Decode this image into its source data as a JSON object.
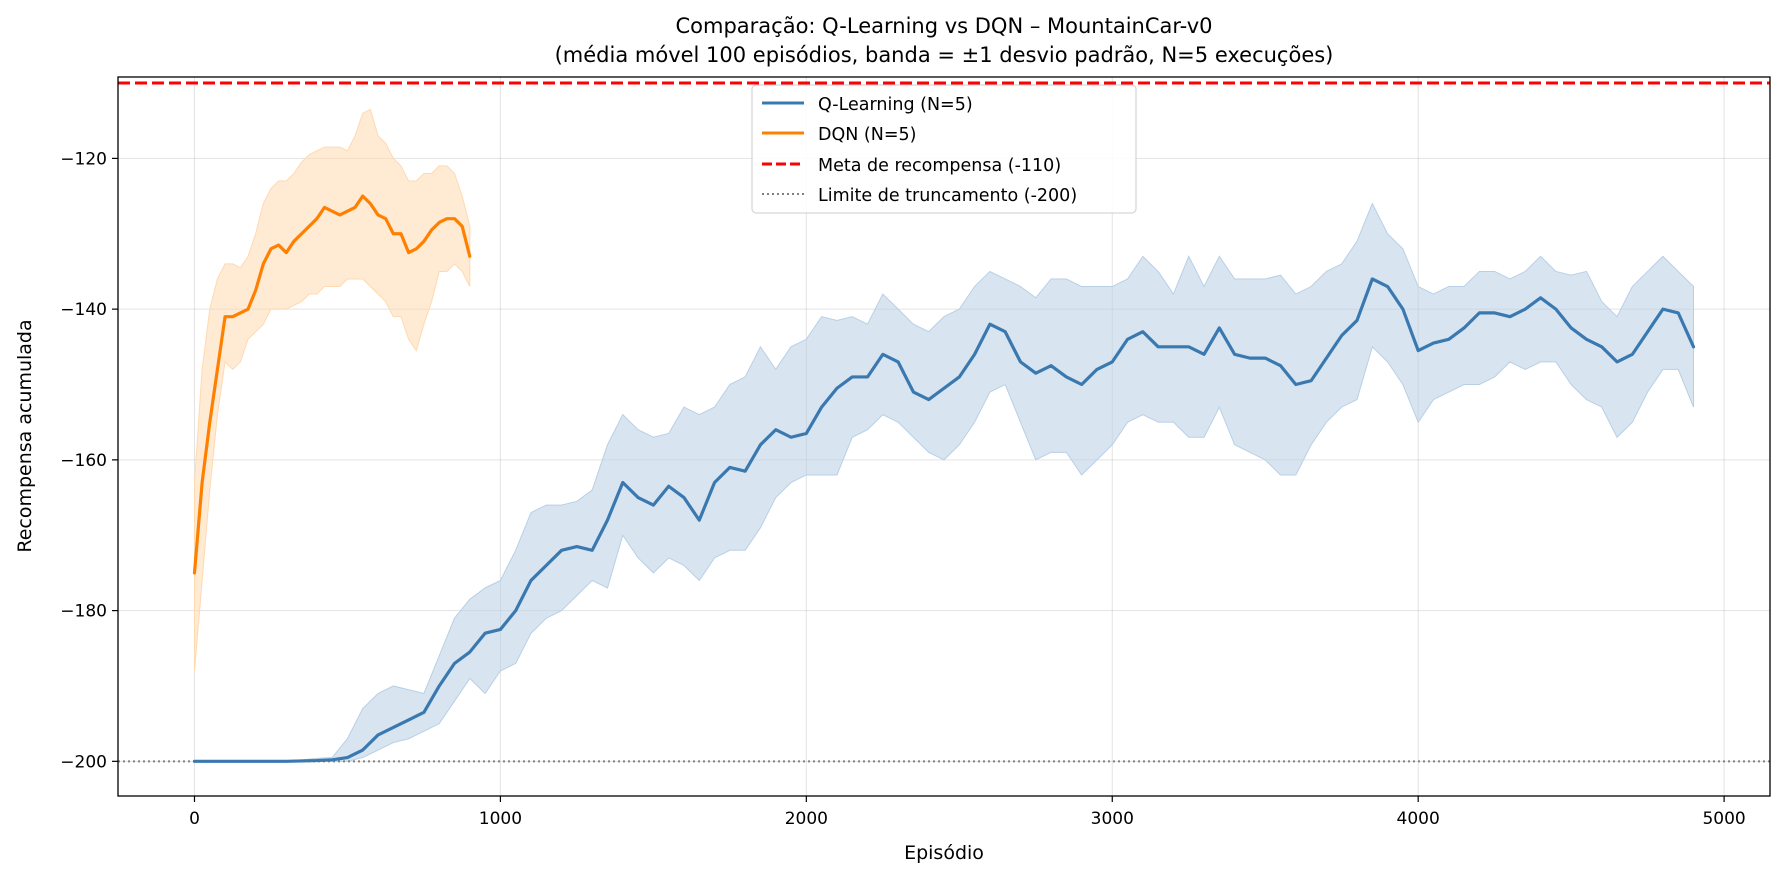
{
  "chart_data": {
    "type": "line",
    "title_line1": "Comparação: Q-Learning vs DQN – MountainCar-v0",
    "title_line2": "(média móvel 100 episódios, banda = ±1 desvio padrão, N=5 execuções)",
    "xlabel": "Episódio",
    "ylabel": "Recompensa acumulada",
    "xlim": [
      -250,
      5150
    ],
    "ylim": [
      -204.6,
      -109.2
    ],
    "xticks": [
      0,
      1000,
      2000,
      3000,
      4000,
      5000
    ],
    "xtick_labels": [
      "0",
      "1000",
      "2000",
      "3000",
      "4000",
      "5000"
    ],
    "yticks": [
      -200,
      -180,
      -160,
      -140,
      -120
    ],
    "ytick_labels": [
      "−200",
      "−180",
      "−160",
      "−140",
      "−120"
    ],
    "grid": true,
    "legend_position": "top-center",
    "legend": [
      {
        "label": "Q-Learning (N=5)",
        "style": "solid",
        "color": "#3a78b0"
      },
      {
        "label": "DQN (N=5)",
        "style": "solid",
        "color": "#ff8000"
      },
      {
        "label": "Meta de recompensa (-110)",
        "style": "dashed",
        "color": "#ff0000"
      },
      {
        "label": "Limite de truncamento (-200)",
        "style": "dotted",
        "color": "#808080"
      }
    ],
    "hlines": [
      {
        "name": "Meta de recompensa (-110)",
        "y": -110,
        "color": "#ff0000",
        "style": "dashed"
      },
      {
        "name": "Limite de truncamento (-200)",
        "y": -200,
        "color": "#808080",
        "style": "dotted"
      }
    ],
    "series": [
      {
        "name": "Q-Learning (N=5)",
        "color": "#3a78b0",
        "band_color": "#b8cfe5",
        "x": [
          0,
          100,
          200,
          300,
          400,
          450,
          500,
          550,
          600,
          650,
          700,
          750,
          800,
          850,
          900,
          950,
          1000,
          1050,
          1100,
          1150,
          1200,
          1250,
          1300,
          1350,
          1400,
          1450,
          1500,
          1550,
          1600,
          1650,
          1700,
          1750,
          1800,
          1850,
          1900,
          1950,
          2000,
          2050,
          2100,
          2150,
          2200,
          2250,
          2300,
          2350,
          2400,
          2450,
          2500,
          2550,
          2600,
          2650,
          2700,
          2750,
          2800,
          2850,
          2900,
          2950,
          3000,
          3050,
          3100,
          3150,
          3200,
          3250,
          3300,
          3350,
          3400,
          3450,
          3500,
          3550,
          3600,
          3650,
          3700,
          3750,
          3800,
          3850,
          3900,
          3950,
          4000,
          4050,
          4100,
          4150,
          4200,
          4250,
          4300,
          4350,
          4400,
          4450,
          4500,
          4550,
          4600,
          4650,
          4700,
          4750,
          4800,
          4850,
          4900
        ],
        "mean": [
          -200,
          -200,
          -200,
          -200,
          -199.9,
          -199.8,
          -199.5,
          -198.5,
          -196.5,
          -195.5,
          -194.5,
          -193.5,
          -190,
          -187,
          -185.5,
          -183,
          -182.5,
          -180,
          -176,
          -174,
          -172,
          -171.5,
          -172,
          -168,
          -163,
          -165,
          -166,
          -163.5,
          -165,
          -168,
          -163,
          -161,
          -161.5,
          -158,
          -156,
          -157,
          -156.5,
          -153,
          -150.5,
          -149,
          -149,
          -146,
          -147,
          -151,
          -152,
          -150.5,
          -149,
          -146,
          -142,
          -143,
          -147,
          -148.5,
          -147.5,
          -149,
          -150,
          -148,
          -147,
          -144,
          -143,
          -145,
          -145,
          -145,
          -146,
          -142.5,
          -146,
          -146.5,
          -146.5,
          -147.5,
          -150,
          -149.5,
          -146.5,
          -143.5,
          -141.5,
          -136,
          -137,
          -140,
          -145.5,
          -144.5,
          -144,
          -142.5,
          -140.5,
          -140.5,
          -141,
          -140,
          -138.5,
          -140,
          -142.5,
          -144,
          -145,
          -147,
          -146,
          -143,
          -140,
          -140.5,
          -145
        ],
        "upper": [
          -200,
          -200,
          -200,
          -200,
          -199.6,
          -199.5,
          -197,
          -193,
          -191,
          -190,
          -190.5,
          -191,
          -186,
          -181,
          -178.5,
          -177,
          -176,
          -172,
          -167,
          -166,
          -166,
          -165.5,
          -164,
          -158,
          -154,
          -156,
          -157,
          -156.5,
          -153,
          -154,
          -153,
          -150,
          -149,
          -145,
          -148,
          -145,
          -144,
          -141,
          -141.5,
          -141,
          -142,
          -138,
          -140,
          -142,
          -143,
          -141,
          -140,
          -137,
          -135,
          -136,
          -137,
          -138.5,
          -136,
          -136,
          -137,
          -137,
          -137,
          -136,
          -133,
          -135,
          -138,
          -133,
          -137,
          -133,
          -136,
          -136,
          -136,
          -135.5,
          -138,
          -137,
          -135,
          -134,
          -131,
          -126,
          -130,
          -132,
          -137,
          -138,
          -137,
          -137,
          -135,
          -135,
          -136,
          -135,
          -133,
          -135,
          -135.5,
          -135,
          -139,
          -141,
          -137,
          -135,
          -133,
          -135,
          -137
        ],
        "lower": [
          -200,
          -200,
          -200,
          -200,
          -200,
          -200,
          -200,
          -199.5,
          -198.5,
          -197.5,
          -197,
          -196,
          -195,
          -192,
          -189,
          -191,
          -188,
          -187,
          -183,
          -181,
          -180,
          -178,
          -176,
          -177,
          -170,
          -173,
          -175,
          -173,
          -174,
          -176,
          -173,
          -172,
          -172,
          -169,
          -165,
          -163,
          -162,
          -162,
          -162,
          -157,
          -156,
          -154,
          -155,
          -157,
          -159,
          -160,
          -158,
          -155,
          -151,
          -150,
          -155,
          -160,
          -159,
          -159,
          -162,
          -160,
          -158,
          -155,
          -154,
          -155,
          -155,
          -157,
          -157,
          -153,
          -158,
          -159,
          -160,
          -162,
          -162,
          -158,
          -155,
          -153,
          -152,
          -145,
          -147,
          -150,
          -155,
          -152,
          -151,
          -150,
          -150,
          -149,
          -147,
          -148,
          -147,
          -147,
          -150,
          -152,
          -153,
          -157,
          -155,
          -151,
          -148,
          -148,
          -153
        ]
      },
      {
        "name": "DQN (N=5)",
        "color": "#ff8000",
        "band_color": "#ffd9b0",
        "x": [
          0,
          25,
          50,
          75,
          100,
          125,
          150,
          175,
          200,
          225,
          250,
          275,
          300,
          325,
          350,
          375,
          400,
          425,
          450,
          475,
          500,
          525,
          550,
          575,
          600,
          625,
          650,
          675,
          700,
          725,
          750,
          775,
          800,
          825,
          850,
          875,
          900
        ],
        "mean": [
          -175,
          -163,
          -155,
          -148,
          -141,
          -141,
          -140.5,
          -140,
          -137.5,
          -134,
          -132,
          -131.5,
          -132.5,
          -131,
          -130,
          -129,
          -128,
          -126.5,
          -127,
          -127.5,
          -127,
          -126.5,
          -125,
          -126,
          -127.5,
          -128,
          -130,
          -130,
          -132.5,
          -132,
          -131,
          -129.5,
          -128.5,
          -128,
          -128,
          -129,
          -133
        ],
        "upper": [
          -163,
          -148,
          -140,
          -136,
          -134,
          -134,
          -134.5,
          -133,
          -130,
          -126,
          -124,
          -123,
          -123,
          -122,
          -120.5,
          -119.5,
          -119,
          -118.5,
          -118.5,
          -118.5,
          -119,
          -117,
          -114,
          -113.5,
          -117,
          -118,
          -120,
          -121,
          -123,
          -123,
          -122,
          -122,
          -121,
          -121,
          -122,
          -125,
          -129
        ],
        "lower": [
          -188,
          -176,
          -164,
          -154,
          -147,
          -148,
          -147,
          -144,
          -143,
          -142,
          -140,
          -140,
          -140,
          -139.5,
          -139,
          -138,
          -138,
          -137,
          -137,
          -137,
          -136,
          -136,
          -136,
          -137,
          -138,
          -139,
          -141,
          -141,
          -144,
          -145.5,
          -142,
          -139,
          -135,
          -135,
          -134,
          -135,
          -137
        ]
      }
    ]
  }
}
